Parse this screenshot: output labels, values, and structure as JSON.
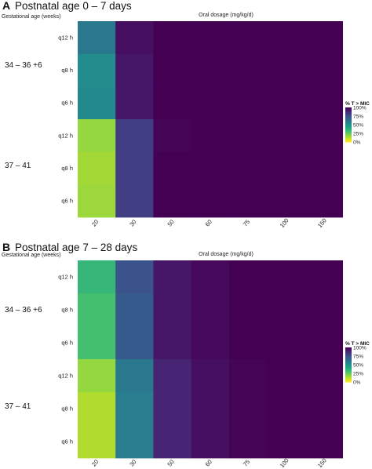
{
  "chart_data": [
    {
      "type": "heatmap",
      "panel": "A",
      "title": "Postnatal age 0 – 7 days",
      "xlabel": "Oral dosage (mg/kg/d)",
      "ylabel": "Gestational age (weeks)",
      "x_categories": [
        "20",
        "30",
        "50",
        "60",
        "75",
        "100",
        "150"
      ],
      "groups": [
        "34 – 36 +6",
        "37 – 41"
      ],
      "rows": [
        "q12 h",
        "q8 h",
        "q6 h",
        "q12 h",
        "q8 h",
        "q6 h"
      ],
      "row_groups": [
        0,
        0,
        0,
        1,
        1,
        1
      ],
      "values": [
        [
          60,
          96,
          100,
          100,
          100,
          100,
          100
        ],
        [
          52,
          94,
          100,
          100,
          100,
          100,
          100
        ],
        [
          53,
          94,
          100,
          100,
          100,
          100,
          100
        ],
        [
          16,
          82,
          99,
          100,
          100,
          100,
          100
        ],
        [
          14,
          82,
          100,
          100,
          100,
          100,
          100
        ],
        [
          15,
          82,
          100,
          100,
          100,
          100,
          100
        ]
      ],
      "legend": {
        "title": "% T > MIC",
        "ticks": [
          "100%",
          "75%",
          "50%",
          "25%",
          "0%"
        ],
        "range": [
          0,
          100
        ]
      }
    },
    {
      "type": "heatmap",
      "panel": "B",
      "title": "Postnatal age 7 – 28 days",
      "xlabel": "Oral dosage (mg/kg/d)",
      "ylabel": "Gestational age (weeks)",
      "x_categories": [
        "20",
        "30",
        "50",
        "60",
        "75",
        "100",
        "150"
      ],
      "groups": [
        "34 – 36 +6",
        "37 – 41"
      ],
      "rows": [
        "q12 h",
        "q8 h",
        "q6 h",
        "q12 h",
        "q8 h",
        "q6 h"
      ],
      "row_groups": [
        0,
        0,
        0,
        1,
        1,
        1
      ],
      "values": [
        [
          34,
          74,
          94,
          98,
          100,
          100,
          100
        ],
        [
          30,
          72,
          94,
          98,
          100,
          100,
          100
        ],
        [
          30,
          72,
          94,
          98,
          100,
          100,
          100
        ],
        [
          16,
          60,
          90,
          96,
          99,
          100,
          100
        ],
        [
          12,
          58,
          90,
          96,
          99,
          100,
          100
        ],
        [
          12,
          58,
          90,
          96,
          99,
          100,
          100
        ]
      ],
      "legend": {
        "title": "% T > MIC",
        "ticks": [
          "100%",
          "75%",
          "50%",
          "25%",
          "0%"
        ],
        "range": [
          0,
          100
        ]
      }
    }
  ]
}
